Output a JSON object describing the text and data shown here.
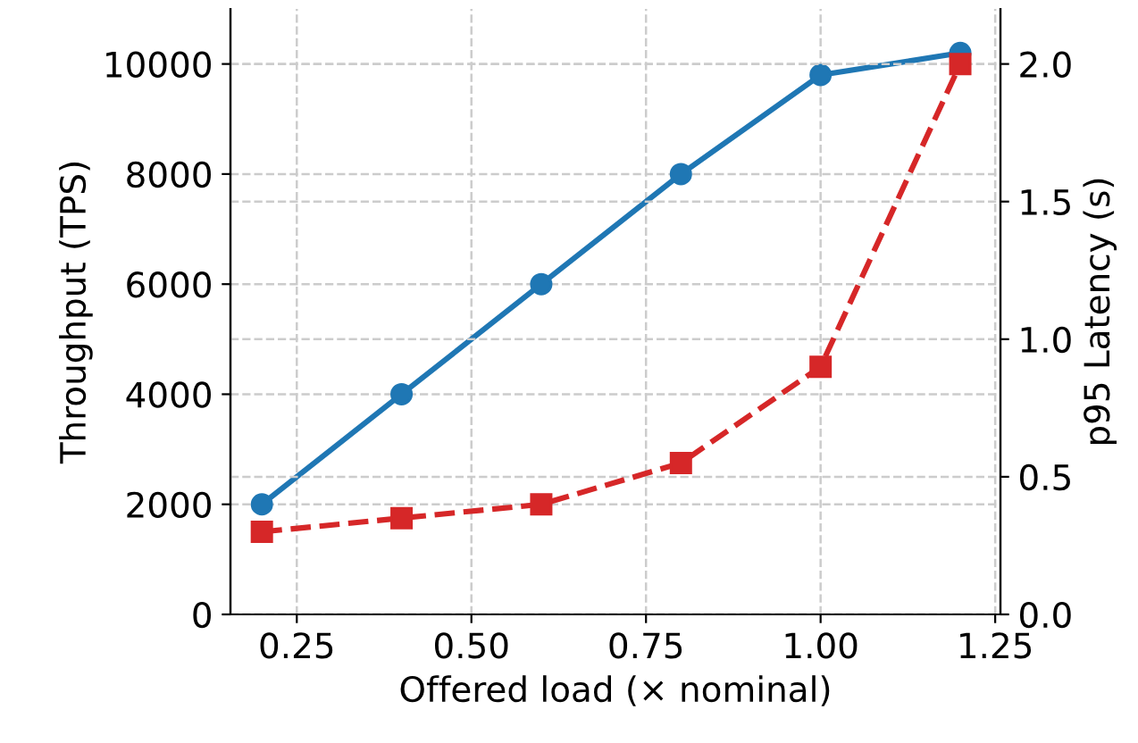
{
  "chart_data": {
    "type": "line",
    "xlabel": "Offered load (× nominal)",
    "ylabel": "Throughput (TPS)",
    "y2label": "p95 Latency (s)",
    "x": [
      0.2,
      0.4,
      0.6,
      0.8,
      1.0,
      1.2
    ],
    "series": [
      {
        "color": "#1f77b4",
        "values": [
          2000,
          4000,
          6000,
          8000,
          9800,
          10200
        ],
        "marker": "circle",
        "line_style": "solid"
      },
      {
        "color": "#d62728",
        "values": [
          0.3,
          0.35,
          0.4,
          0.55,
          0.9,
          2.0
        ],
        "axis": "y2",
        "marker": "square",
        "line_style": "dashed"
      }
    ],
    "xlim": [
      0.155,
      1.2575
    ],
    "xticks": [
      0.25,
      {
        "value": 0.5,
        "label": "0.50"
      },
      0.75,
      {
        "value": 1.0,
        "label": "1.00"
      },
      1.25
    ],
    "ylim": [
      0,
      11000
    ],
    "yticks": [
      0,
      2000,
      4000,
      6000,
      8000,
      10000
    ],
    "y2lim": [
      0,
      2.2
    ],
    "y2ticks": [
      {
        "value": 0,
        "label": "0.0"
      },
      0.5,
      {
        "value": 1,
        "label": "1.0"
      },
      1.5,
      {
        "value": 2,
        "label": "2.0"
      }
    ],
    "grid": true
  }
}
